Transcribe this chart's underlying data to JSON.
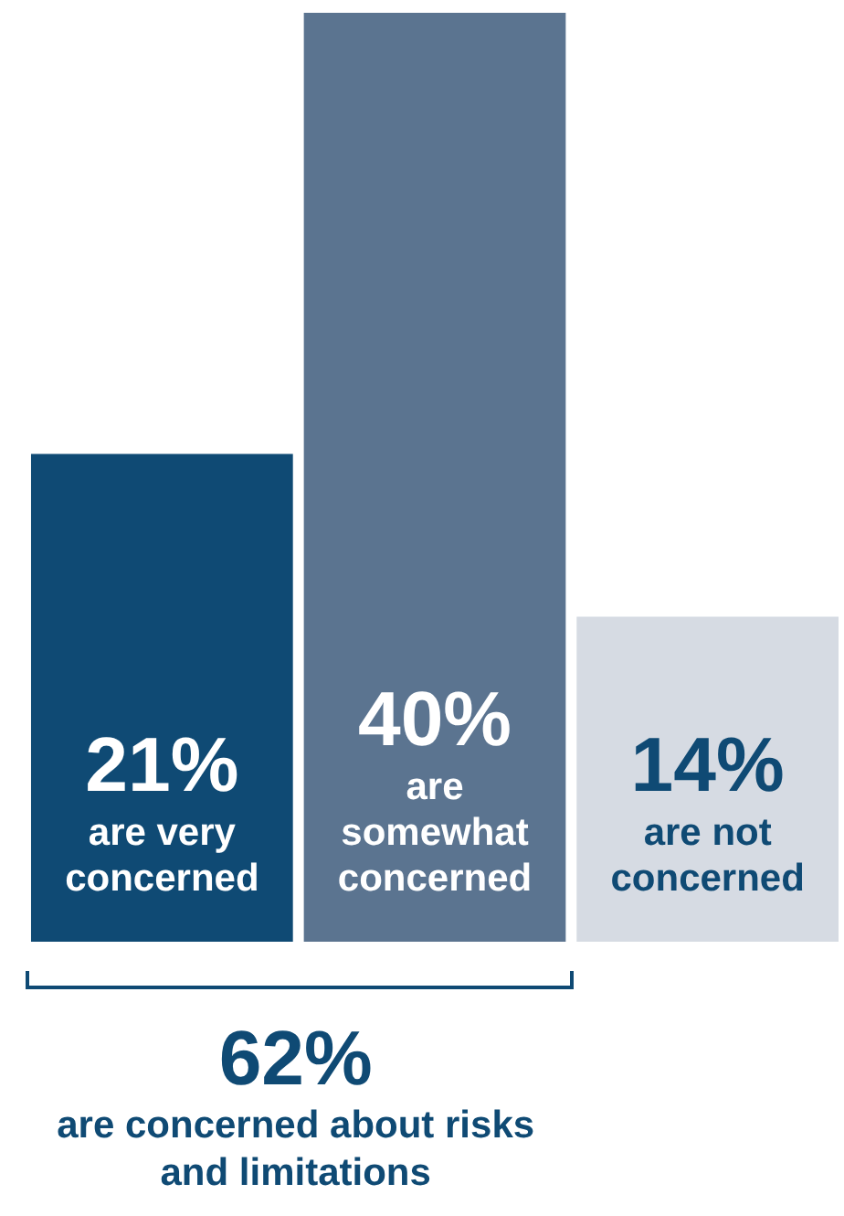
{
  "chart_data": {
    "type": "bar",
    "categories": [
      "are very concerned",
      "are somewhat concerned",
      "are not concerned"
    ],
    "values": [
      21,
      40,
      14
    ],
    "colors": [
      "#0f4a74",
      "#5b7490",
      "#d6dbe3"
    ],
    "value_labels": [
      "21%",
      "40%",
      "14%"
    ],
    "annotations": [
      "62%",
      "are concerned about risks and limitations"
    ]
  }
}
